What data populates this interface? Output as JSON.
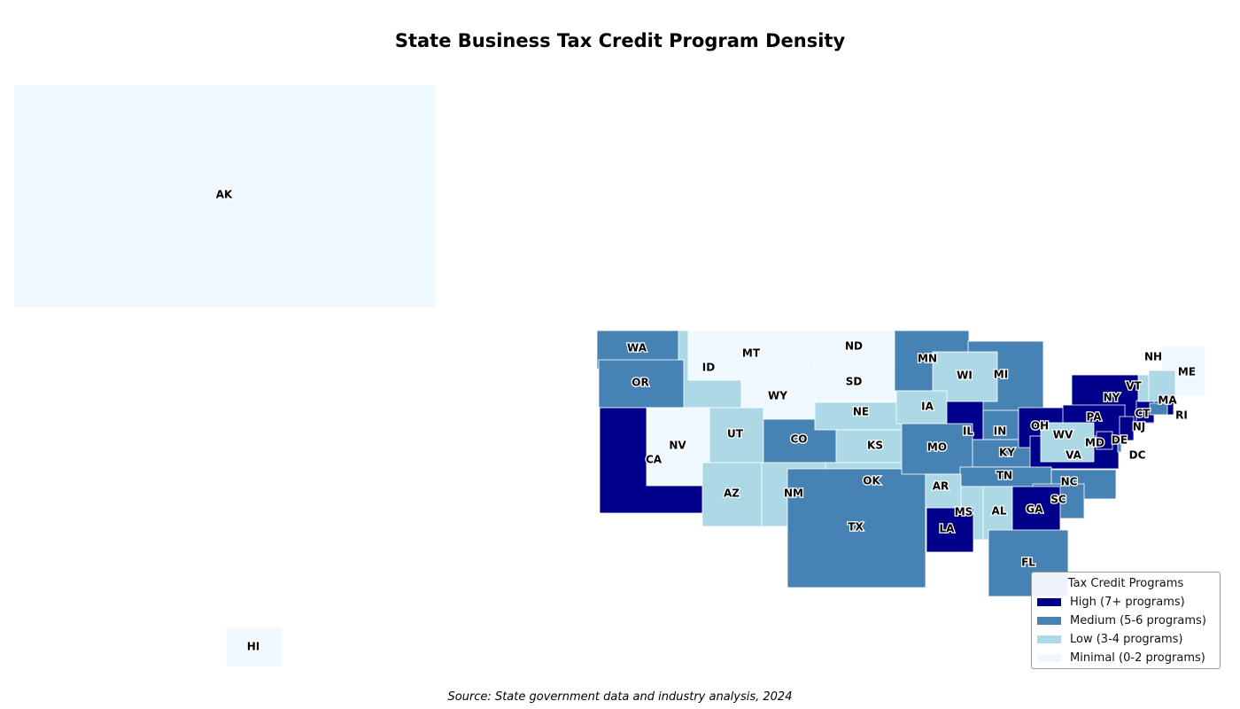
{
  "title": "State Business Tax Credit Program Density",
  "source": "Source: State government data and industry analysis, 2024",
  "legend": {
    "title": "Tax Credit Programs",
    "items": [
      {
        "key": "high",
        "label": "High (7+ programs)",
        "color": "#00008b"
      },
      {
        "key": "medium",
        "label": "Medium (5-6 programs)",
        "color": "#4682b4"
      },
      {
        "key": "low",
        "label": "Low (3-4 programs)",
        "color": "#add8e6"
      },
      {
        "key": "minimal",
        "label": "Minimal (0-2 programs)",
        "color": "#f0f8ff"
      }
    ]
  },
  "states": [
    {
      "code": "AK",
      "category": "minimal"
    },
    {
      "code": "HI",
      "category": "minimal"
    },
    {
      "code": "WA",
      "category": "medium"
    },
    {
      "code": "ID",
      "category": "low"
    },
    {
      "code": "MT",
      "category": "minimal"
    },
    {
      "code": "ND",
      "category": "minimal"
    },
    {
      "code": "OR",
      "category": "medium"
    },
    {
      "code": "WY",
      "category": "minimal"
    },
    {
      "code": "SD",
      "category": "minimal"
    },
    {
      "code": "CA",
      "category": "high"
    },
    {
      "code": "NV",
      "category": "minimal"
    },
    {
      "code": "UT",
      "category": "low"
    },
    {
      "code": "CO",
      "category": "medium"
    },
    {
      "code": "AZ",
      "category": "low"
    },
    {
      "code": "NM",
      "category": "low"
    },
    {
      "code": "NE",
      "category": "low"
    },
    {
      "code": "KS",
      "category": "low"
    },
    {
      "code": "OK",
      "category": "low"
    },
    {
      "code": "TX",
      "category": "medium"
    },
    {
      "code": "MN",
      "category": "medium"
    },
    {
      "code": "MI",
      "category": "medium"
    },
    {
      "code": "WI",
      "category": "low"
    },
    {
      "code": "IA",
      "category": "low"
    },
    {
      "code": "IL",
      "category": "high"
    },
    {
      "code": "IN",
      "category": "medium"
    },
    {
      "code": "MO",
      "category": "medium"
    },
    {
      "code": "KY",
      "category": "medium"
    },
    {
      "code": "OH",
      "category": "high"
    },
    {
      "code": "NY",
      "category": "high"
    },
    {
      "code": "PA",
      "category": "high"
    },
    {
      "code": "VA",
      "category": "high"
    },
    {
      "code": "WV",
      "category": "low"
    },
    {
      "code": "MD",
      "category": "low"
    },
    {
      "code": "DC",
      "category": "medium"
    },
    {
      "code": "DE",
      "category": "high"
    },
    {
      "code": "NJ",
      "category": "high"
    },
    {
      "code": "TN",
      "category": "medium"
    },
    {
      "code": "NC",
      "category": "medium"
    },
    {
      "code": "SC",
      "category": "medium"
    },
    {
      "code": "GA",
      "category": "high"
    },
    {
      "code": "AL",
      "category": "low"
    },
    {
      "code": "MS",
      "category": "low"
    },
    {
      "code": "AR",
      "category": "low"
    },
    {
      "code": "LA",
      "category": "high"
    },
    {
      "code": "FL",
      "category": "medium"
    },
    {
      "code": "ME",
      "category": "minimal"
    },
    {
      "code": "MA",
      "category": "high"
    },
    {
      "code": "CT",
      "category": "high"
    },
    {
      "code": "RI",
      "category": "medium"
    },
    {
      "code": "VT",
      "category": "low"
    },
    {
      "code": "NH",
      "category": "low"
    }
  ]
}
